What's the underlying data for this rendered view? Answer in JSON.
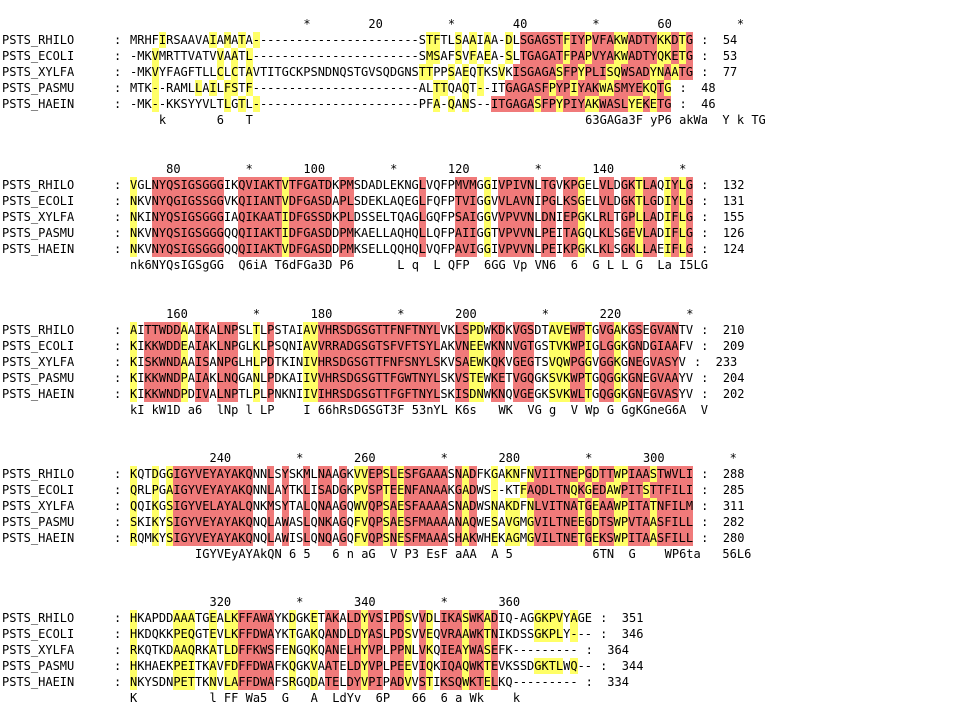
{
  "colors": {
    "identical": "#f07a7a",
    "similar": "#ffff66",
    "text": "#000000"
  },
  "blocks": [
    {
      "ruler": "                        *        20         *        40         *        60         *",
      "rows": [
        {
          "name": "PSTS_RHILO",
          "seq": "MRHFIRSAAVAIAMATA-----------------------STFTLSAAIAA-DLSGAGSTFIYPVFAKWADTYKKDTG",
          "end": "54",
          "mask": "....y......y.y.y.y.......................yy..y.y.y..y.rrrrrryrryrrryyrrrryyryrrr"
        },
        {
          "name": "PSTS_ECOLI",
          "seq": "-MKVMRTTVATVVAATL-----------------------SMSAFSVFAEA-SLTGAGATFPAPVYAKWADTYQKETG",
          "end": "53",
          "mask": "...y........y.y.y........................yy..y.y.y..y.rrrrrryrryrrryyrrrryyryrrr"
        },
        {
          "name": "PSTS_XYLFA",
          "seq": "-MKVYFAGFTLLCLCTAVTITGCKPSNDNQSTGVSQDGNSTTPPSAEQTKSVKISGAGASFPYPLISQWSADYNAATG",
          "end": "77",
          "mask": "...y........y.y.y.......................yy..y.y.y..y.rrrrrryrryrrryyrrrryyryrrr"
        },
        {
          "name": "PSTS_PASMU",
          "seq": "MTK--RAMLLAILFSTF-----------------------ALTTQAQT--ITGAGASFPYPIYAKWASMYEKQTG",
          "end": "48",
          "mask": "...y.....y.y.yy.y.........................yy..y.y...rrrrrryrryrrryyrrrryyryrrr"
        },
        {
          "name": "PSTS_HAEIN",
          "seq": "-MK--KKSYYVLTLGTL-----------------------PFA-QANS--ITGAGASFPYPIYAKWASLYEKETG",
          "end": "46",
          "mask": "...y.........y.y.y........................y.y.y...rrrrrryrryrrryyrrrryyryrrr"
        }
      ],
      "cons": "    k       6   T                                              63GAGa3F yP6 akWa  Y k TG"
    },
    {
      "ruler": "     80         *       100         *       120         *       140         *",
      "rows": [
        {
          "name": "PSTS_RHILO",
          "seq": "VGLNYQSIGSGGGIKQVIAKTVTFGATDKPMSDADLEKNGLVQFPMVMGGIVPIVNLTGVKPGELVLDGKTLAQIYLG",
          "end": "132",
          "mask": "y..rrrrrrrrrr..rrrrrryrrrrrr.rr.........r....rrr.y.rrrrr.rr.rry..rr.rryrr.yryrr"
        },
        {
          "name": "PSTS_ECOLI",
          "seq": "NKVNYQGIGSSGGVKQIIANTVDFGASDAPLSDEKLAQEGLFQFPTVIGGVVLAVNIPGLKSGELVLDGKTLGDIYLG",
          "end": "131",
          "mask": "y..rrrrrrrrrr..rrrrrryrrrrrr.rr.........r....rrr.y.rrrrr.rr.rry..rr.rryrr.yryrr"
        },
        {
          "name": "PSTS_XYLFA",
          "seq": "NKINYQSIGSGGGIAQIKAATIDFGSSDKPLDSSELTQAGLGQFPSAIGGVVPVVNLDNIEPGKLRLTGPLLADIFLG",
          "end": "155",
          "mask": "y..rrrrrrrrrr..rrrrrryrrrrrr.rr.........r....rrr.y.rrrrr.rr.rry..rr.rryrr.yryrr"
        },
        {
          "name": "PSTS_PASMU",
          "seq": "NKVNYQSIGSGGGQQQIIAKTIDFGASDDPMKAELLAQHQLLQFPAIIGGTVPVVNLPEITAGQLKLSGEVLADIFLG",
          "end": "126",
          "mask": "y..rrrrrrrrrr..rrrrrryrrrrrr.rr.........r....rrr.y.rrrrr.rr.rry..rr.rryrr.yryrr"
        },
        {
          "name": "PSTS_HAEIN",
          "seq": "NKVNYQSIGSGGGQQQIIAKTVDFGASDDPMKSELLQQHQLVQFPAVIGGIVPVVNLPEIKPGKLKLSGKLLAEIFLG",
          "end": "124",
          "mask": "y..rrrrrrrrrr..rrrrrryrrrrrr.rr.........r....rrr.y.rrrrr.rr.rry..rr.rryrr.yryrr"
        }
      ],
      "cons": "nk6NYQsIGSgGG  Q6iA T6dFGa3D P6      L q  L QFP  6GG Vp VN6  6  G L L G  La I5LG"
    },
    {
      "ruler": "     160         *       180         *       200         *       220         *",
      "rows": [
        {
          "name": "PSTS_RHILO",
          "seq": "AITTWDDAAIKALNPSLTLPSTAIAVVHRSDGSGTTFNFTNYLVKLSPDWKDKVGSDTAVEWPTGVGAKGSEGVANTV",
          "end": "210",
          "mask": "y.rrrrry.rr.rrr..y.r....yyrrrrrrrrrrrrrrrrr..rryy.rr.rrr..yyyrry.rry.rr.rrrr..r.y"
        },
        {
          "name": "PSTS_ECOLI",
          "seq": "KIKKWDDEAIAKLNPGLKLPSQNIAVVRRADGSGTSFVFTSYLAKVNEEWKNNVGTGSTVKWPIGLGGKGNDGIAAFV",
          "end": "209",
          "mask": "y.rrrrry.rr.rrr..y.r....yyrrrrrrrrrrrrrrrrr..rryy.rr.rrr..yyyrry.rry.rr.rrrr..r.y"
        },
        {
          "name": "PSTS_XYLFA",
          "seq": "KISKWNDAAISANPGLHLPDTKINIVHRSDGSGTTFNFSNYLSKVSAEWKQKVGEGTSVQWPGGVGGKGNEGVASYV",
          "end": "233",
          "mask": "y.rrrrry.rr.rrr..y.r....yyrrrrrrrrrrrrrrrrr..rryy.rr.rrr..yyyrry.rry.rr.rrrr..r.y"
        },
        {
          "name": "PSTS_PASMU",
          "seq": "KIKKWNDPAIAKLNQGANLPDKAIIVVHRSDGSGTTFGWTNYLSKVSTEWKETVGQGKSVKWPTGQGGKGNEGVAAYV",
          "end": "204",
          "mask": "y.rrrrry.rr.rrr..y.r....yyrrrrrrrrrrrrrrrrr..rryy.rr.rrr..yyyrry.rry.rr.rrrr..r.y"
        },
        {
          "name": "PSTS_HAEIN",
          "seq": "KIKKWNDPDIVALNPTLPLPNKNIIVIHRSDGSGTTFGFTNYLSKISDNWKNQVGEGKSVKWLTGQGGKGNEGVASYV",
          "end": "202",
          "mask": "y.rrrrry.rr.rrr..y.r....yyrrrrrrrrrrrrrrrrr..rryy.rr.rrr..yyyrry.rry.rr.rrrr..r.y"
        }
      ],
      "cons": "kI kW1D a6  lNp l LP    I 66hRsDGSGT3F 53nYL K6s   WK  VG g  V Wp G GgKGneG6A  V"
    },
    {
      "ruler": "           240         *       260         *       280         *       300         *",
      "rows": [
        {
          "name": "PSTS_RHILO",
          "seq": "KQTDGGIGYVEYAYAKQNNLSYSKMLNAAGKVVEPSLESFGAAASNADFKGAKNFNVIITNEPGDTTWPIAASTWVLI",
          "end": "288",
          "mask": "y..y.yrrrrrrrrrrr..r.r..r.rr.r.yyrryryrrrrrr.ryr..y.yy.yrrrrrryryrryyrrryrrrrrr"
        },
        {
          "name": "PSTS_ECOLI",
          "seq": "QRLPGAIGYVEYAYAKQNNLAYTKLISADGKPVSPTEENFANAAKGADWS--KTFAQDLTNQKGEDAWPITSTTFILI",
          "end": "285",
          "mask": "y..y.yrrrrrrrrrrr..r.r..r.rr.r.yyrryryrrrrrr.ryr..y...yrrrrrryryrryyrrryrrrrrr"
        },
        {
          "name": "PSTS_XYLFA",
          "seq": "QQIKGSIGYVELAYALQNKMSYTALQNAAGQWVQPSAESFAAAASNADWSNAKDFNLVITNATGEAAWPITATNFILM",
          "end": "311",
          "mask": "y..y.yrrrrrrrrrrr..r.r..r.rr.r.yyrryryrrrrrr.ryr..y.yy.yrrrrrryryrryyrrryrrrrrr"
        },
        {
          "name": "PSTS_PASMU",
          "seq": "SKIKYSIGYVEYAYAKQNQLAWASLQNKAGQFVQPSAESFMAAAANAQWESAVGMGVILTNEEGDTSWPVTAASFILL",
          "end": "282",
          "mask": "y..y.yrrrrrrrrrrr..r.r..r.rr.r.yyrryryrrrrrr.ryr..y.yy.yrrrrrryryrryyrrryrrrrrr"
        },
        {
          "name": "PSTS_HAEIN",
          "seq": "RQMKYSIGYVEYAYAKQNQLAWISLQNQAGQFVQPSNESFMAAASHAKWHEKAGMGVILTNETGEKSWPITAASFILL",
          "end": "280",
          "mask": "y..y.yrrrrrrrrrrr..r.r..r.rr.r.yyrryryrrrrrr.ryr..y.yy.yrrrrrryryrryyrrryrrrrrr"
        }
      ],
      "cons": "         IGYVEyAYAkQN 6 5   6 n aG  V P3 EsF aAA  A 5           6TN  G    WP6ta   56L6"
    },
    {
      "ruler": "           320         *       340         *       360",
      "rows": [
        {
          "name": "PSTS_RHILO",
          "seq": "HKAPDDAAATGEALKFFAWAYKDGKETAKALDYVSIPDSVVDLIKASWKADIQ-AGGKPVYAGE",
          "end": "351",
          "mask": "y.....yyy..y.yyrrrrr..y..y.rr.rryrr.rry.ry.rrryrryr.....yyyy.y.."
        },
        {
          "name": "PSTS_ECOLI",
          "seq": "HKDQKKPEQGTEVLKFFDWAYKTGAKQANDLDYASLPDSVVEQVRAAWKTNIKDSSGKPLY---",
          "end": "346",
          "mask": "y.....yyy..y.yyrrrrr..y..y.rr.rryrr.rry.ry.rrryrryr.....yyyy.y.."
        },
        {
          "name": "PSTS_XYLFA",
          "seq": "RKQTKDAAQRKATLDFFKWSFENGQKQANELHYVPLPPNLVKQIEAYWASEFK---------",
          "end": "364",
          "mask": "y.....yyy..y.yyrrrrr..y..y.rr.rryrr.rry.ry.rrryrryr..............."
        },
        {
          "name": "PSTS_PASMU",
          "seq": "HKHAEKPEITKAVFDFFDWAFKQGKVAATELDYVPLPEEVIQKIQAQWKTEVKSSDGKTLWQ--",
          "end": "344",
          "mask": "y.....yyy..y.yyrrrrr..y..y.rr.rryrr.rry.ry.rrryrryr.....yyyy.y.."
        },
        {
          "name": "PSTS_HAEIN",
          "seq": "NKYSDNPETTKNVLAFFDWAFSRGQDATELDYVPIPADVVSTIKSQWKTELKQ---------",
          "end": "334",
          "mask": "y.....yyy..y.yyrrrrr..y..y.rr.rryrr.rry.ry.rrryrryr..............."
        }
      ],
      "cons": "K          l FF Wa5  G   A  LdYv  6P   66  6 a Wk    k"
    }
  ]
}
